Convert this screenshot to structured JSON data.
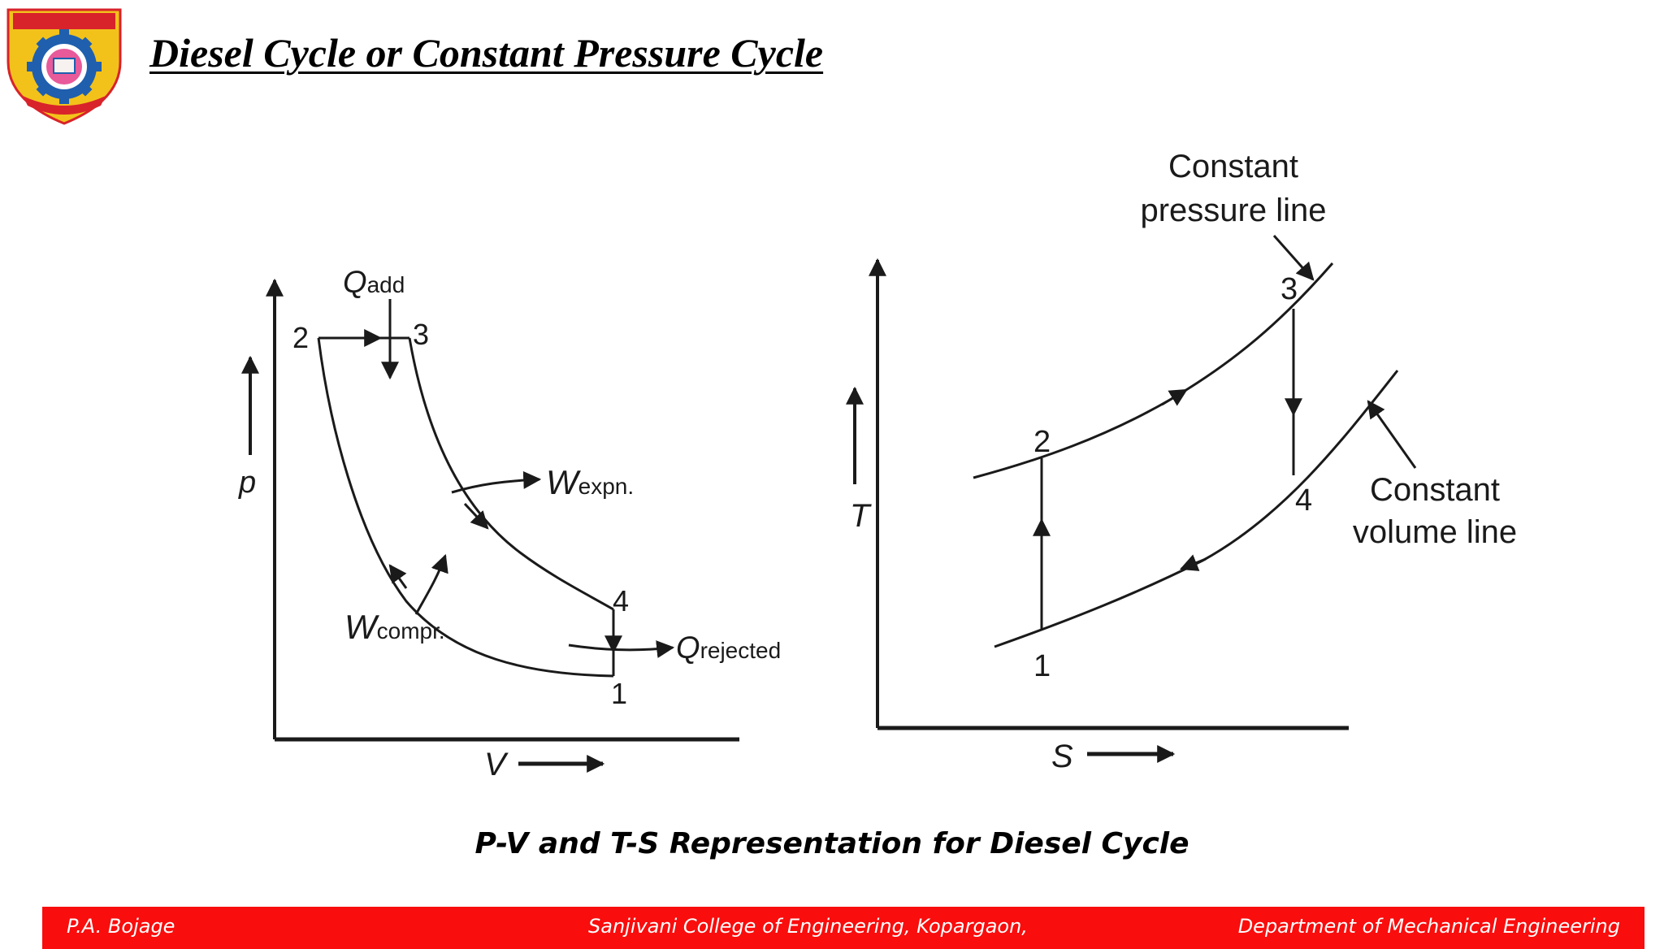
{
  "title": "Diesel Cycle or Constant Pressure Cycle",
  "caption": "P-V and T-S Representation for Diesel Cycle",
  "pv_diagram": {
    "axis_y": "p",
    "axis_x": "V",
    "heat_added": {
      "symbol": "Q",
      "subscript": "add"
    },
    "heat_rejected": {
      "symbol": "Q",
      "subscript": "rejected"
    },
    "work_expansion": {
      "symbol": "W",
      "subscript": "expn."
    },
    "work_compression": {
      "symbol": "W",
      "subscript": "compr."
    },
    "points": [
      "1",
      "2",
      "3",
      "4"
    ]
  },
  "ts_diagram": {
    "axis_y": "T",
    "axis_x": "S",
    "constant_pressure_label": [
      "Constant",
      "pressure line"
    ],
    "constant_volume_label": [
      "Constant",
      "volume line"
    ],
    "points": [
      "1",
      "2",
      "3",
      "4"
    ]
  },
  "footer": {
    "left": "P.A. Bojage",
    "center": "Sanjivani College of Engineering, Kopargaon,",
    "right": "Department of Mechanical Engineering"
  },
  "colors": {
    "footer_bar": "#f90d0d",
    "footer_text": "#ffffff",
    "logo_gold": "#f2c21b",
    "logo_red": "#d8232a",
    "logo_blue": "#1f5fae",
    "line": "#1a1a1a"
  }
}
